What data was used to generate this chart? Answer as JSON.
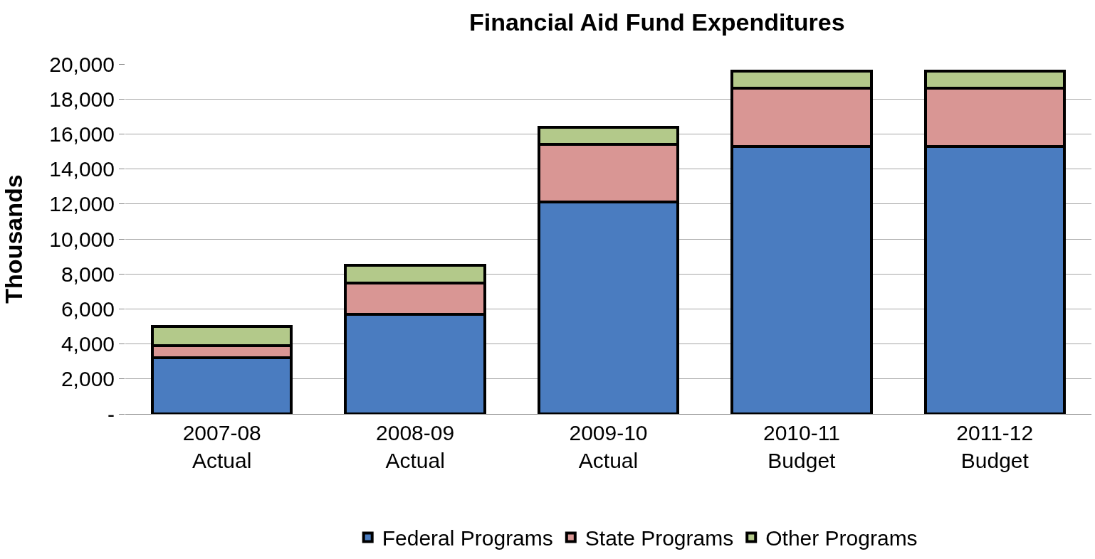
{
  "chart_data": {
    "type": "bar",
    "title": "Financial Aid Fund Expenditures",
    "ylabel": "Thousands",
    "categories": [
      "2007-08\nActual",
      "2008-09\nActual",
      "2009-10\nActual",
      "2010-11\nBudget",
      "2011-12\nBudget"
    ],
    "stacked": true,
    "series": [
      {
        "name": "Federal Programs",
        "color": "#4a7cc0",
        "values": [
          3200,
          5700,
          12100,
          15300,
          15300
        ]
      },
      {
        "name": "State Programs",
        "color": "#d99694",
        "values": [
          700,
          1800,
          3300,
          3300,
          3300
        ]
      },
      {
        "name": "Other Programs",
        "color": "#b3c98a",
        "values": [
          1100,
          1000,
          1000,
          1000,
          1000
        ]
      }
    ],
    "ylim": [
      0,
      20000
    ],
    "yticks": [
      {
        "value": 0,
        "label": "-"
      },
      {
        "value": 2000,
        "label": "2,000"
      },
      {
        "value": 4000,
        "label": "4,000"
      },
      {
        "value": 6000,
        "label": "6,000"
      },
      {
        "value": 8000,
        "label": "8,000"
      },
      {
        "value": 10000,
        "label": "10,000"
      },
      {
        "value": 12000,
        "label": "12,000"
      },
      {
        "value": 14000,
        "label": "14,000"
      },
      {
        "value": 16000,
        "label": "16,000"
      },
      {
        "value": 18000,
        "label": "18,000"
      },
      {
        "value": 20000,
        "label": "20,000"
      }
    ],
    "grid": "y",
    "legend": "bottom"
  }
}
